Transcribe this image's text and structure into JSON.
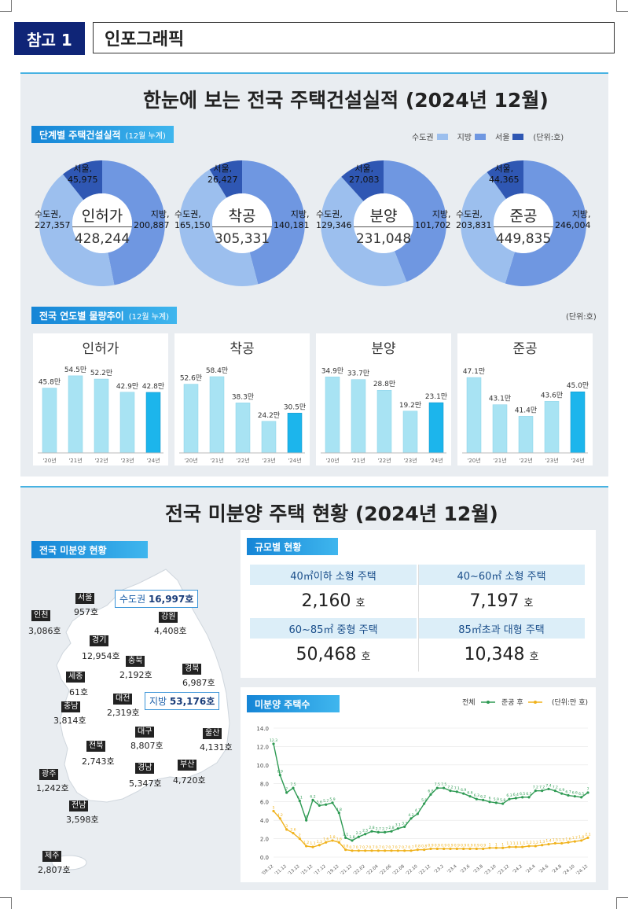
{
  "header": {
    "badge": "참고 1",
    "title": "인포그래픽"
  },
  "panel1": {
    "title": "한눈에 보는 전국 주택건설실적 (2024년 12월)",
    "stage_label": "단계별 주택건설실적",
    "stage_sub": "(12월 누계)",
    "legend": [
      {
        "name": "수도권",
        "color": "#9cbfee"
      },
      {
        "name": "지방",
        "color": "#6f97e1"
      },
      {
        "name": "서울",
        "color": "#2f57b3"
      }
    ],
    "legend_unit": "(단위:호)",
    "donuts": [
      {
        "name": "인허가",
        "total": "428,244",
        "seoul_label": "서울,",
        "seoul": "45,975",
        "metro_label": "수도권,",
        "metro": "227,357",
        "local_label": "지방,",
        "local": "200,887",
        "seoul_v": 45975,
        "metro_v": 227357,
        "local_v": 200887
      },
      {
        "name": "착공",
        "total": "305,331",
        "seoul_label": "서울,",
        "seoul": "26,427",
        "metro_label": "수도권,",
        "metro": "165,150",
        "local_label": "지방,",
        "local": "140,181",
        "seoul_v": 26427,
        "metro_v": 165150,
        "local_v": 140181
      },
      {
        "name": "분양",
        "total": "231,048",
        "seoul_label": "서울,",
        "seoul": "27,083",
        "metro_label": "수도권,",
        "metro": "129,346",
        "local_label": "지방,",
        "local": "101,702",
        "seoul_v": 27083,
        "metro_v": 129346,
        "local_v": 101702
      },
      {
        "name": "준공",
        "total": "449,835",
        "seoul_label": "서울,",
        "seoul": "44,365",
        "metro_label": "수도권,",
        "metro": "203,831",
        "local_label": "지방,",
        "local": "246,004",
        "seoul_v": 44365,
        "metro_v": 203831,
        "local_v": 246004
      }
    ],
    "trend_label": "전국 연도별 물량추이",
    "trend_sub": "(12월 누계)",
    "trend_unit": "(단위:호)"
  },
  "chart_data": [
    {
      "type": "bar",
      "title": "인허가",
      "categories": [
        "'20년",
        "'21년",
        "'22년",
        "'23년",
        "'24년"
      ],
      "values": [
        45.8,
        54.5,
        52.2,
        42.9,
        42.8
      ],
      "labels": [
        "45.8만",
        "54.5만",
        "52.2만",
        "42.9만",
        "42.8만"
      ],
      "ylim": [
        0,
        60
      ]
    },
    {
      "type": "bar",
      "title": "착공",
      "categories": [
        "'20년",
        "'21년",
        "'22년",
        "'23년",
        "'24년"
      ],
      "values": [
        52.6,
        58.4,
        38.3,
        24.2,
        30.5
      ],
      "labels": [
        "52.6만",
        "58.4만",
        "38.3만",
        "24.2만",
        "30.5만"
      ],
      "ylim": [
        0,
        65
      ]
    },
    {
      "type": "bar",
      "title": "분양",
      "categories": [
        "'20년",
        "'21년",
        "'22년",
        "'23년",
        "'24년"
      ],
      "values": [
        34.9,
        33.7,
        28.8,
        19.2,
        23.1
      ],
      "labels": [
        "34.9만",
        "33.7만",
        "28.8만",
        "19.2만",
        "23.1만"
      ],
      "ylim": [
        0,
        39
      ]
    },
    {
      "type": "bar",
      "title": "준공",
      "categories": [
        "'20년",
        "'21년",
        "'22년",
        "'23년",
        "'24년"
      ],
      "values": [
        47.1,
        43.1,
        41.4,
        43.6,
        45.0
      ],
      "labels": [
        "47.1만",
        "43.1만",
        "41.4만",
        "43.6만",
        "45.0만"
      ],
      "ylim": [
        36,
        48.5
      ]
    },
    {
      "type": "line",
      "title": "미분양 주택수",
      "x_ticks": [
        "'09.12",
        "'11.12",
        "'13.12",
        "'15.12",
        "'17.12",
        "'19.12",
        "'21.12",
        "'22.02",
        "'22.04",
        "'22.06",
        "'22.08",
        "'22.10",
        "'22.12",
        "'23.2",
        "'23.4",
        "'23.6",
        "'23.8",
        "'23.10",
        "'23.12",
        "'24.2",
        "'24.4",
        "'24.6",
        "'24.8",
        "'24.10",
        "'24.12"
      ],
      "ylim": [
        0,
        14
      ],
      "yticks": [
        "0.0",
        "2.0",
        "4.0",
        "6.0",
        "8.0",
        "10.0",
        "12.0",
        "14.0"
      ],
      "legend": [
        "전체",
        "준공 후"
      ],
      "unit": "(단위:만 호)",
      "series": [
        {
          "name": "전체",
          "color": "#2e9a53",
          "values": [
            12.3,
            8.9,
            7.0,
            7.5,
            6.1,
            4.0,
            6.2,
            5.6,
            5.7,
            5.9,
            4.8,
            2.1,
            1.8,
            2.2,
            2.5,
            2.8,
            2.7,
            2.7,
            2.8,
            3.1,
            3.3,
            4.2,
            4.7,
            5.8,
            6.8,
            7.5,
            7.5,
            7.2,
            7.1,
            6.9,
            6.6,
            6.3,
            6.2,
            6.0,
            5.9,
            5.8,
            6.3,
            6.4,
            6.5,
            6.5,
            7.2,
            7.2,
            7.4,
            7.2,
            6.9,
            6.7,
            6.6,
            6.5,
            7.0
          ],
          "labels": [
            "12.3",
            "8.9",
            "7",
            "7.5",
            "6.1",
            "4",
            "6.2",
            "5.6",
            "5.7",
            "5.9",
            "4.8",
            "2.1",
            "1.8",
            "2.2",
            "2.5",
            "2.8",
            "2.7",
            "2.7",
            "2.8",
            "3.1",
            "3.3",
            "4.2",
            "4.7",
            "5.8",
            "6.8",
            "7.5",
            "7.5",
            "7.2",
            "7.1",
            "6.9",
            "6.6",
            "6.3",
            "6.2",
            "6",
            "5.9",
            "5.8",
            "6.3",
            "6.4",
            "6.5",
            "6.5",
            "7.2",
            "7.2",
            "7.4",
            "7.2",
            "6.9",
            "6.7",
            "6.6",
            "6.5",
            "7"
          ]
        },
        {
          "name": "준공 후",
          "color": "#f0b21c",
          "values": [
            5.0,
            4.2,
            3.0,
            2.6,
            2.0,
            1.2,
            1.1,
            1.3,
            1.6,
            1.8,
            1.6,
            0.8,
            0.7,
            0.7,
            0.7,
            0.7,
            0.7,
            0.7,
            0.7,
            0.7,
            0.7,
            0.7,
            0.8,
            0.8,
            0.9,
            0.9,
            0.9,
            0.9,
            0.9,
            0.9,
            0.9,
            0.9,
            0.9,
            1.0,
            1.0,
            1.0,
            1.1,
            1.1,
            1.1,
            1.2,
            1.2,
            1.3,
            1.4,
            1.5,
            1.5,
            1.6,
            1.7,
            1.8,
            2.1
          ],
          "labels": [
            "5",
            "4.2",
            "3",
            "2.6",
            "2",
            "1.2",
            "1.1",
            "1.3",
            "1.6",
            "1.8",
            "1.6",
            "0.8",
            "0.7",
            "0.7",
            "0.7",
            "0.7",
            "0.7",
            "0.7",
            "0.7",
            "0.7",
            "0.7",
            "0.7",
            "0.8",
            "0.8",
            "0.9",
            "0.9",
            "0.9",
            "0.9",
            "0.9",
            "0.9",
            "0.9",
            "0.9",
            "0.9",
            "1",
            "1",
            "1",
            "1.1",
            "1.1",
            "1.1",
            "1.2",
            "1.2",
            "1.3",
            "1.4",
            "1.5",
            "1.5",
            "1.6",
            "1.7",
            "1.8",
            "2.1"
          ]
        }
      ]
    }
  ],
  "panel2": {
    "title": "전국 미분양 주택 현황 (2024년 12월)",
    "map_label": "전국 미분양 현황",
    "metro_tag_label": "수도권",
    "metro_tag_value": "16,997호",
    "local_tag_label": "지방",
    "local_tag_value": "53,176호",
    "regions": [
      {
        "name": "서울",
        "value": "957호"
      },
      {
        "name": "인천",
        "value": "3,086호"
      },
      {
        "name": "강원",
        "value": "4,408호"
      },
      {
        "name": "경기",
        "value": "12,954호"
      },
      {
        "name": "충북",
        "value": "2,192호"
      },
      {
        "name": "경북",
        "value": "6,987호"
      },
      {
        "name": "세종",
        "value": "61호"
      },
      {
        "name": "충남",
        "value": "3,814호"
      },
      {
        "name": "대전",
        "value": "2,319호"
      },
      {
        "name": "대구",
        "value": "8,807호"
      },
      {
        "name": "울산",
        "value": "4,131호"
      },
      {
        "name": "전북",
        "value": "2,743호"
      },
      {
        "name": "광주",
        "value": "1,242호"
      },
      {
        "name": "경남",
        "value": "5,347호"
      },
      {
        "name": "부산",
        "value": "4,720호"
      },
      {
        "name": "전남",
        "value": "3,598호"
      },
      {
        "name": "제주",
        "value": "2,807호"
      }
    ],
    "size_label": "규모별 현황",
    "sizes": [
      {
        "name": "40㎡이하 소형 주택",
        "value": "2,160",
        "unit": "호"
      },
      {
        "name": "40~60㎡ 소형 주택",
        "value": "7,197",
        "unit": "호"
      },
      {
        "name": "60~85㎡ 중형 주택",
        "value": "50,468",
        "unit": "호"
      },
      {
        "name": "85㎡초과 대형 주택",
        "value": "10,348",
        "unit": "호"
      }
    ],
    "line_label": "미분양 주택수"
  }
}
